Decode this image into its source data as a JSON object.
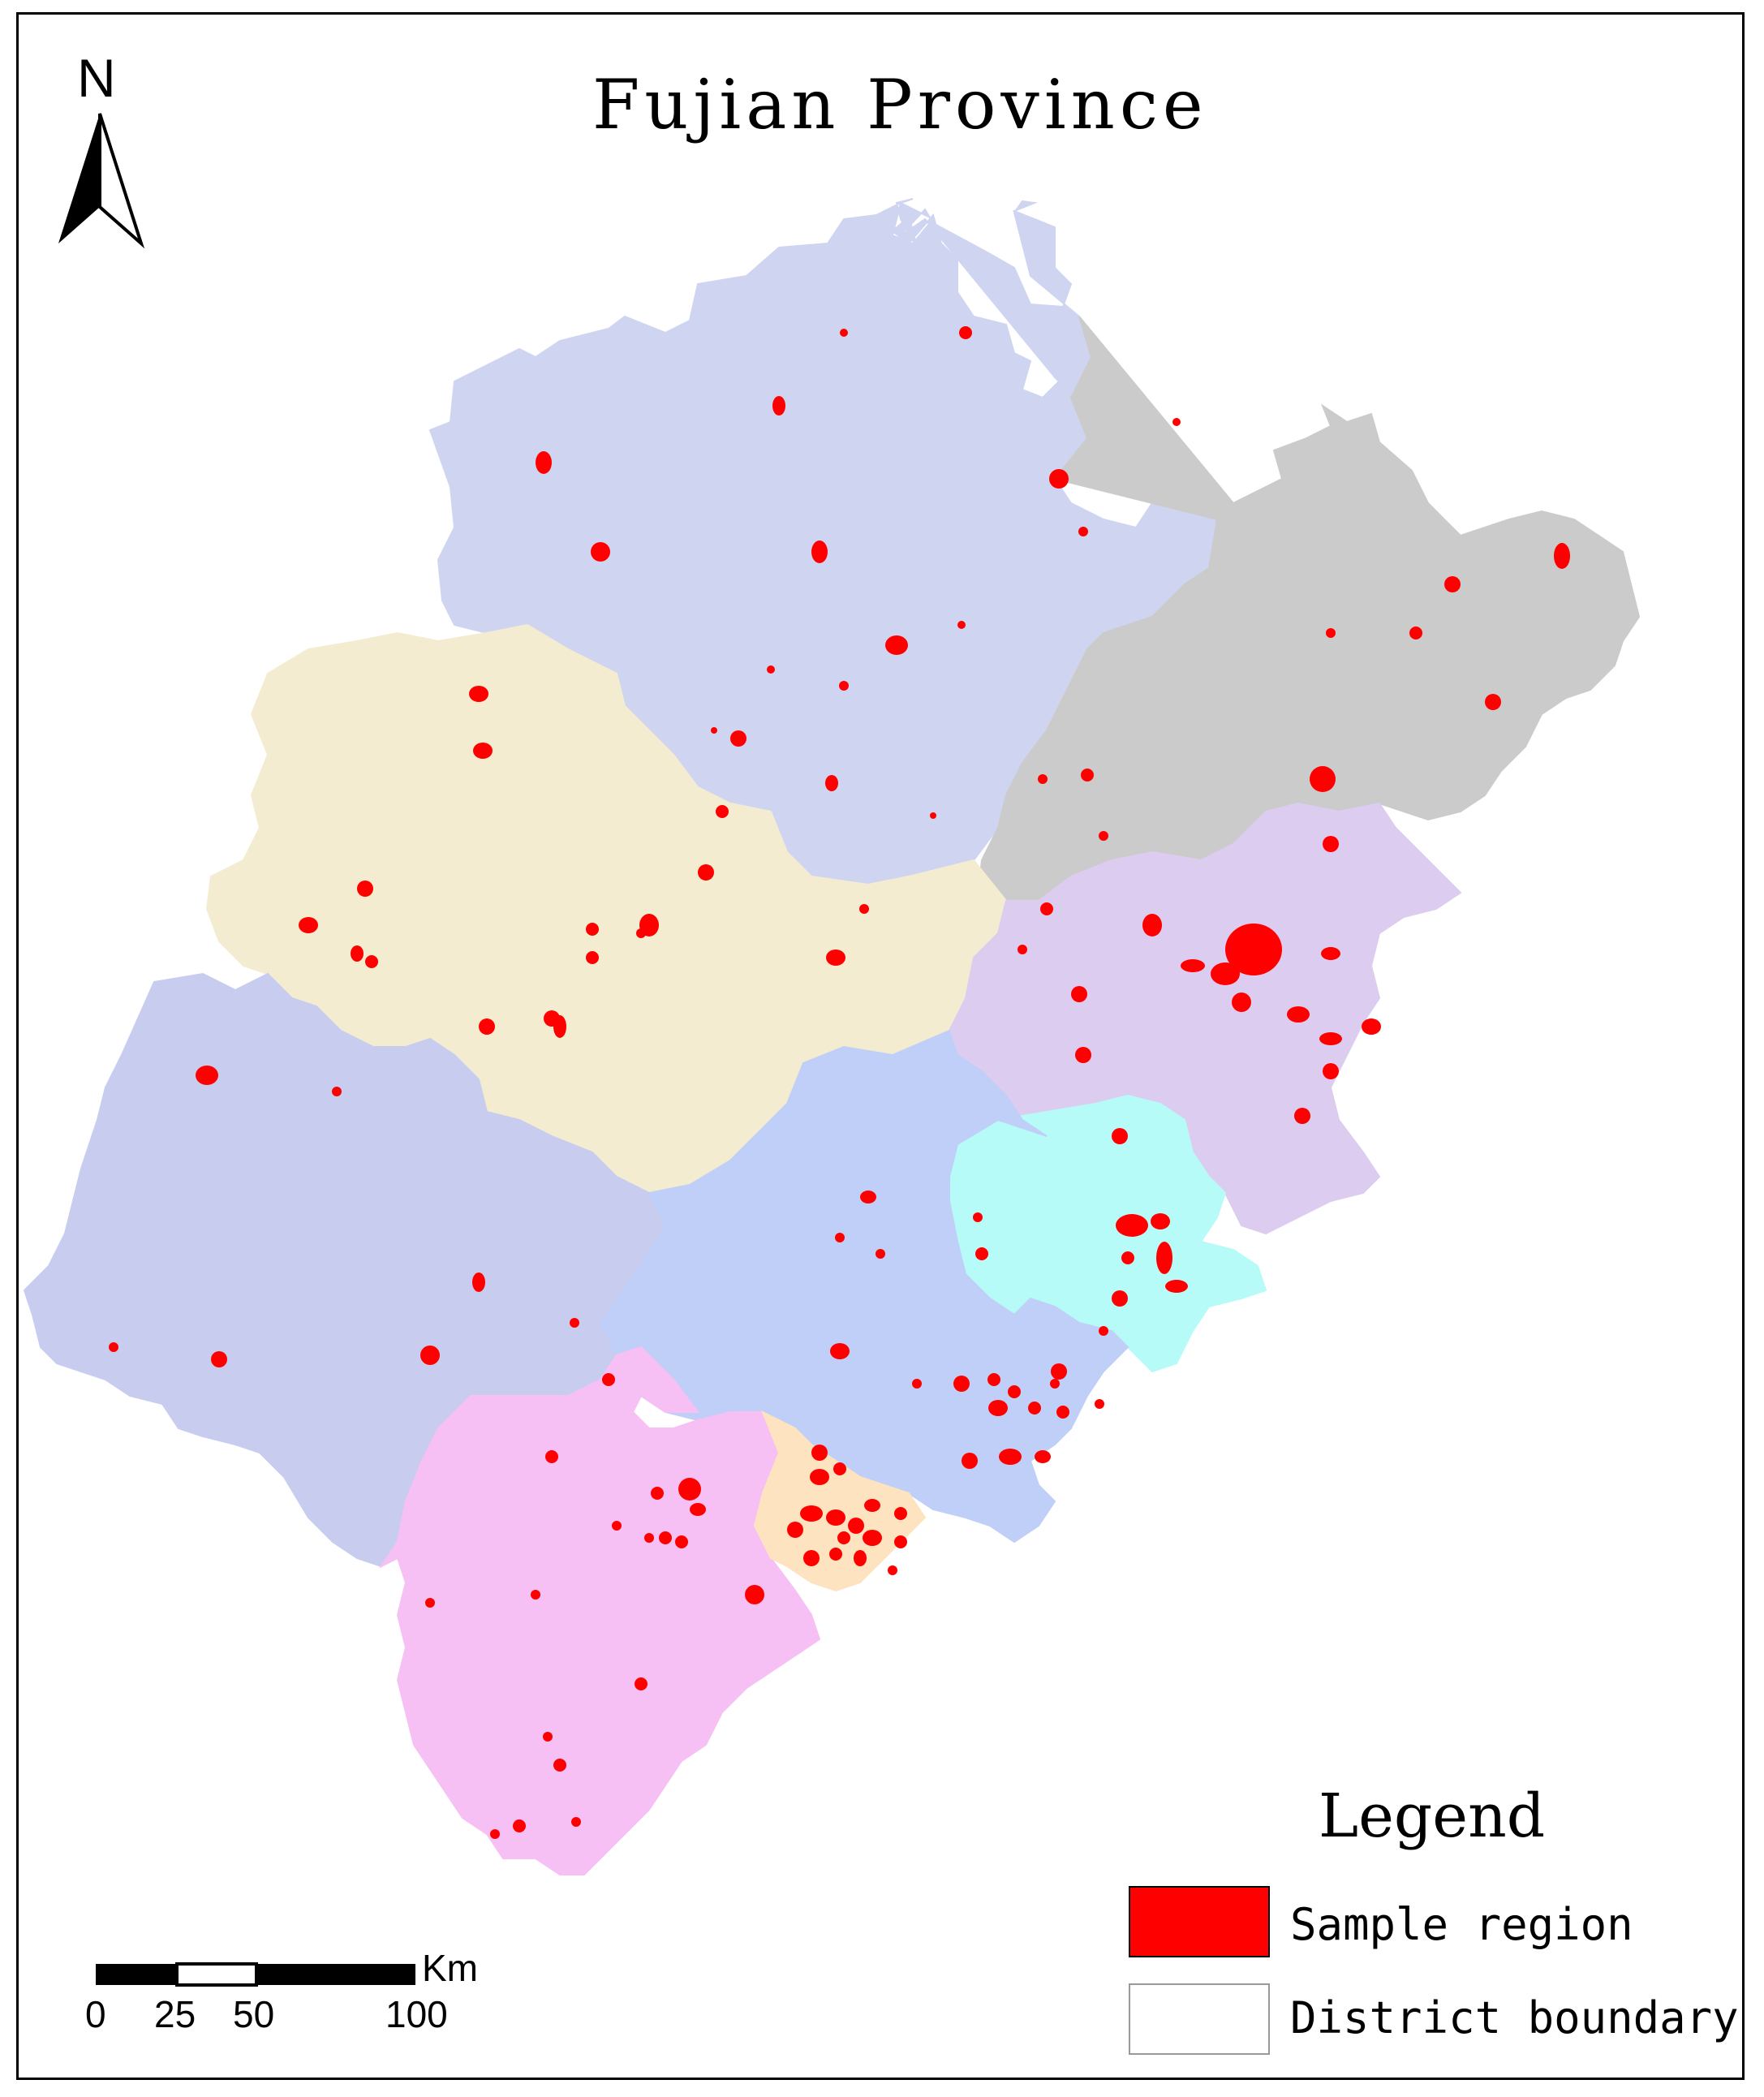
{
  "map": {
    "title": "Fujian Province",
    "north_arrow": {
      "letter": "N",
      "icon": "north-arrow-icon"
    },
    "districts": [
      {
        "id": "north",
        "color": "#cfd5f1"
      },
      {
        "id": "northeast",
        "color": "#cbcbcb"
      },
      {
        "id": "central-west",
        "color": "#f4ecd0"
      },
      {
        "id": "east-central",
        "color": "#dccdf0"
      },
      {
        "id": "coastal-center",
        "color": "#b6fbf7"
      },
      {
        "id": "southwest",
        "color": "#c8cdef"
      },
      {
        "id": "south-central",
        "color": "#c0cff7"
      },
      {
        "id": "south",
        "color": "#f7c0f4"
      },
      {
        "id": "small-south",
        "color": "#fde3bf"
      }
    ],
    "sample_color": "#ff0000",
    "legend": {
      "title": "Legend",
      "items": [
        {
          "label": "Sample region",
          "swatch": "#ff0000"
        },
        {
          "label": "District boundary",
          "swatch": "#ffffff"
        }
      ]
    },
    "scale_bar": {
      "unit": "Km",
      "ticks": [
        "0",
        "25",
        "50",
        "100"
      ]
    }
  }
}
